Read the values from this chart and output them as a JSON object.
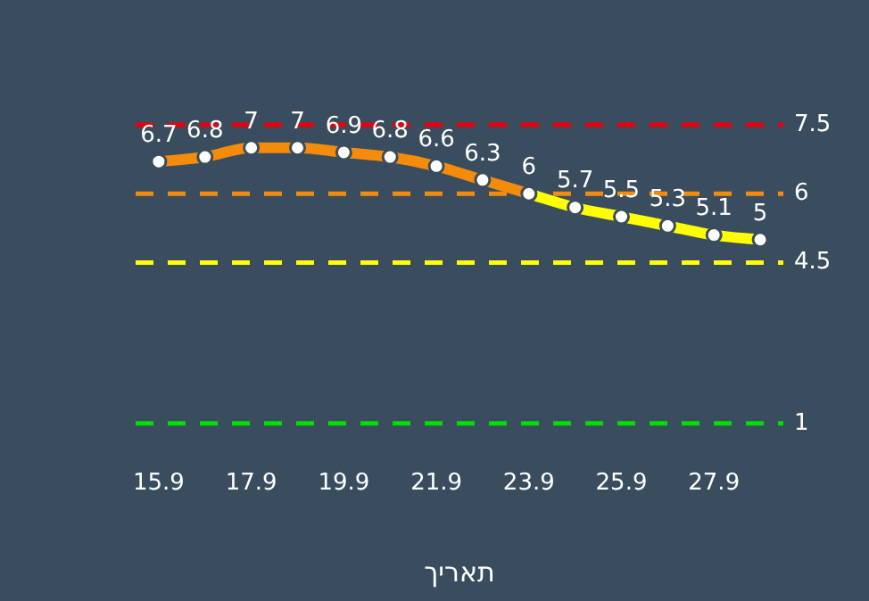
{
  "chart_data": {
    "type": "line",
    "xlabel": "תאריך",
    "categories": [
      "15.9",
      null,
      "17.9",
      null,
      "19.9",
      null,
      "21.9",
      null,
      "23.9",
      null,
      "25.9",
      null,
      "27.9",
      null
    ],
    "series": [
      {
        "color": "#f58b0a",
        "values": [
          6.7,
          6.8,
          7,
          7,
          6.9,
          6.8,
          6.6,
          6.3,
          6,
          null,
          null,
          null,
          null,
          null
        ],
        "value_labels": [
          "6.7",
          "6.8",
          "7",
          "7",
          "6.9",
          "6.8",
          "6.6",
          "6.3",
          "6",
          null,
          null,
          null,
          null,
          null
        ]
      },
      {
        "color": "#ffff00",
        "values": [
          null,
          null,
          null,
          null,
          null,
          null,
          null,
          null,
          6,
          5.7,
          5.5,
          5.3,
          5.1,
          5
        ],
        "value_labels": [
          null,
          null,
          null,
          null,
          null,
          null,
          null,
          null,
          null,
          "5.7",
          "5.5",
          "5.3",
          "5.1",
          "5"
        ]
      }
    ],
    "ref_lines": [
      {
        "axis": "y",
        "value": 7.5,
        "label": "7.5",
        "color": "#e8000b",
        "line_style": "dashed"
      },
      {
        "axis": "y",
        "value": 6,
        "label": "6",
        "color": "#f58b0a",
        "line_style": "dashed"
      },
      {
        "axis": "y",
        "value": 4.5,
        "label": "4.5",
        "color": "#ffff00",
        "line_style": "dashed"
      },
      {
        "axis": "y",
        "value": 1,
        "label": "1",
        "color": "#00e000",
        "line_style": "dashed"
      }
    ],
    "tick_labels": "x",
    "grid": false,
    "legend": false,
    "marker": "circle",
    "line_style": "solid"
  }
}
